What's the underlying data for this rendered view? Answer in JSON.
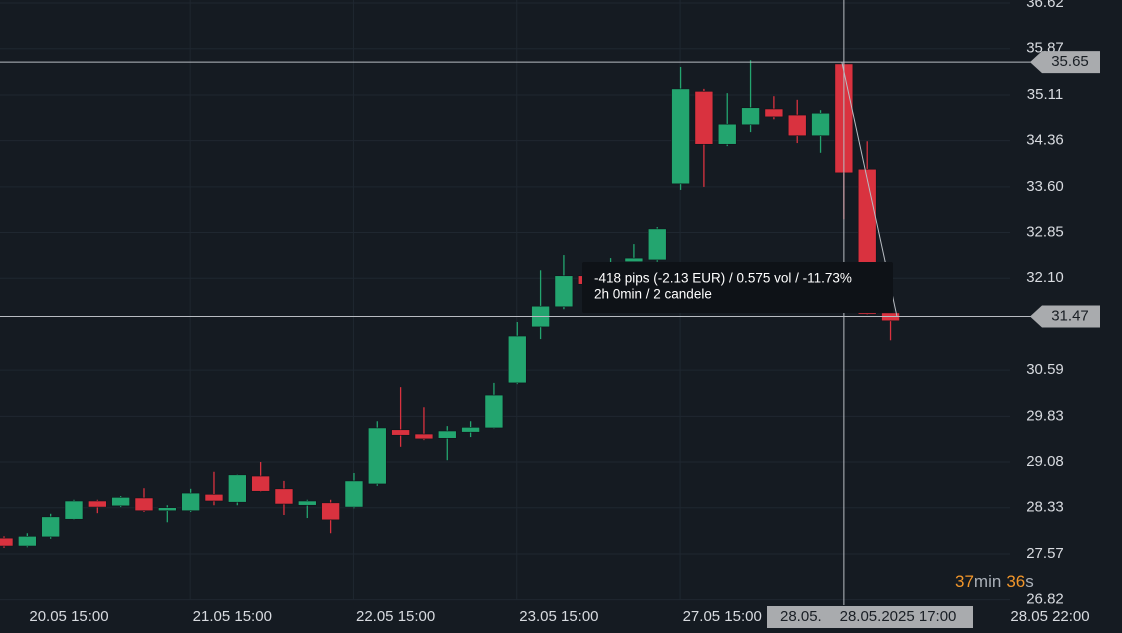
{
  "chart_data": {
    "type": "candlestick",
    "categories": [
      null,
      null,
      null,
      "20.05 15:00",
      null,
      null,
      null,
      null,
      null,
      null,
      "21.05 15:00",
      null,
      null,
      null,
      null,
      null,
      null,
      "22.05 15:00",
      null,
      null,
      null,
      null,
      null,
      null,
      "23.05 15:00",
      null,
      null,
      null,
      null,
      null,
      null,
      "27.05 15:00",
      null,
      null,
      "28.05.",
      null,
      null,
      null,
      null
    ],
    "open": [
      27.83,
      27.7,
      27.85,
      28.14,
      28.44,
      28.36,
      28.49,
      28.28,
      28.28,
      28.55,
      28.42,
      28.85,
      28.64,
      28.37,
      28.41,
      28.34,
      28.72,
      29.61,
      29.54,
      29.47,
      29.57,
      29.64,
      30.38,
      31.3,
      31.63,
      32.14,
      32.23,
      32.37,
      32.4,
      33.65,
      35.17,
      34.3,
      34.62,
      34.88,
      34.78,
      34.44,
      35.62,
      33.89,
      31.53
    ],
    "high": [
      27.86,
      27.91,
      28.23,
      28.46,
      28.46,
      28.52,
      28.65,
      28.37,
      28.64,
      28.92,
      28.88,
      29.08,
      28.77,
      28.46,
      28.46,
      28.9,
      29.75,
      30.31,
      29.98,
      29.67,
      29.75,
      30.38,
      31.38,
      32.23,
      32.48,
      32.2,
      32.43,
      32.66,
      32.94,
      35.57,
      35.21,
      35.14,
      35.68,
      35.09,
      35.03,
      34.86,
      35.65,
      34.35,
      31.59
    ],
    "low": [
      27.67,
      27.68,
      27.82,
      28.13,
      28.24,
      28.34,
      28.26,
      28.09,
      28.26,
      28.37,
      28.37,
      28.59,
      28.21,
      28.16,
      27.91,
      28.32,
      28.69,
      29.33,
      29.44,
      29.11,
      29.49,
      29.63,
      30.36,
      31.1,
      31.59,
      31.97,
      32.2,
      32.33,
      32.37,
      33.55,
      33.6,
      34.27,
      34.5,
      34.71,
      34.32,
      34.16,
      33.07,
      31.5,
      31.08
    ],
    "close": [
      27.7,
      27.86,
      28.18,
      28.44,
      28.34,
      28.5,
      28.28,
      28.33,
      28.57,
      28.44,
      28.87,
      28.6,
      28.39,
      28.44,
      28.13,
      28.77,
      29.64,
      29.52,
      29.46,
      29.59,
      29.65,
      30.18,
      31.15,
      31.64,
      32.14,
      32.0,
      32.33,
      32.43,
      32.91,
      35.21,
      34.3,
      34.63,
      34.9,
      34.75,
      34.44,
      34.81,
      33.83,
      31.51,
      31.4
    ],
    "up_color": "#23a56f",
    "down_color": "#d9323f",
    "ylim": [
      26.6,
      36.67
    ],
    "yticks": [
      36.62,
      35.87,
      35.11,
      34.36,
      {
        "value": 33.6,
        "label": "33.60"
      },
      32.85,
      {
        "value": 32.1,
        "label": "32.10"
      },
      30.59,
      29.83,
      29.08,
      28.33,
      27.57,
      26.82
    ],
    "grid": true,
    "x_extra_label": "28.05 22:00",
    "crosshair": {
      "x_index": 36,
      "x_label": "28.05.2025 17:00",
      "price_levels": [
        35.65,
        31.47
      ]
    },
    "tooltip": {
      "line1": "-418 pips (-2.13 EUR) / 0.575 vol / -11.73%",
      "line2": "2h 0min / 2 candele"
    },
    "countdown": {
      "minutes": "37",
      "min_unit": "min",
      "seconds": "36",
      "sec_unit": "s"
    }
  }
}
